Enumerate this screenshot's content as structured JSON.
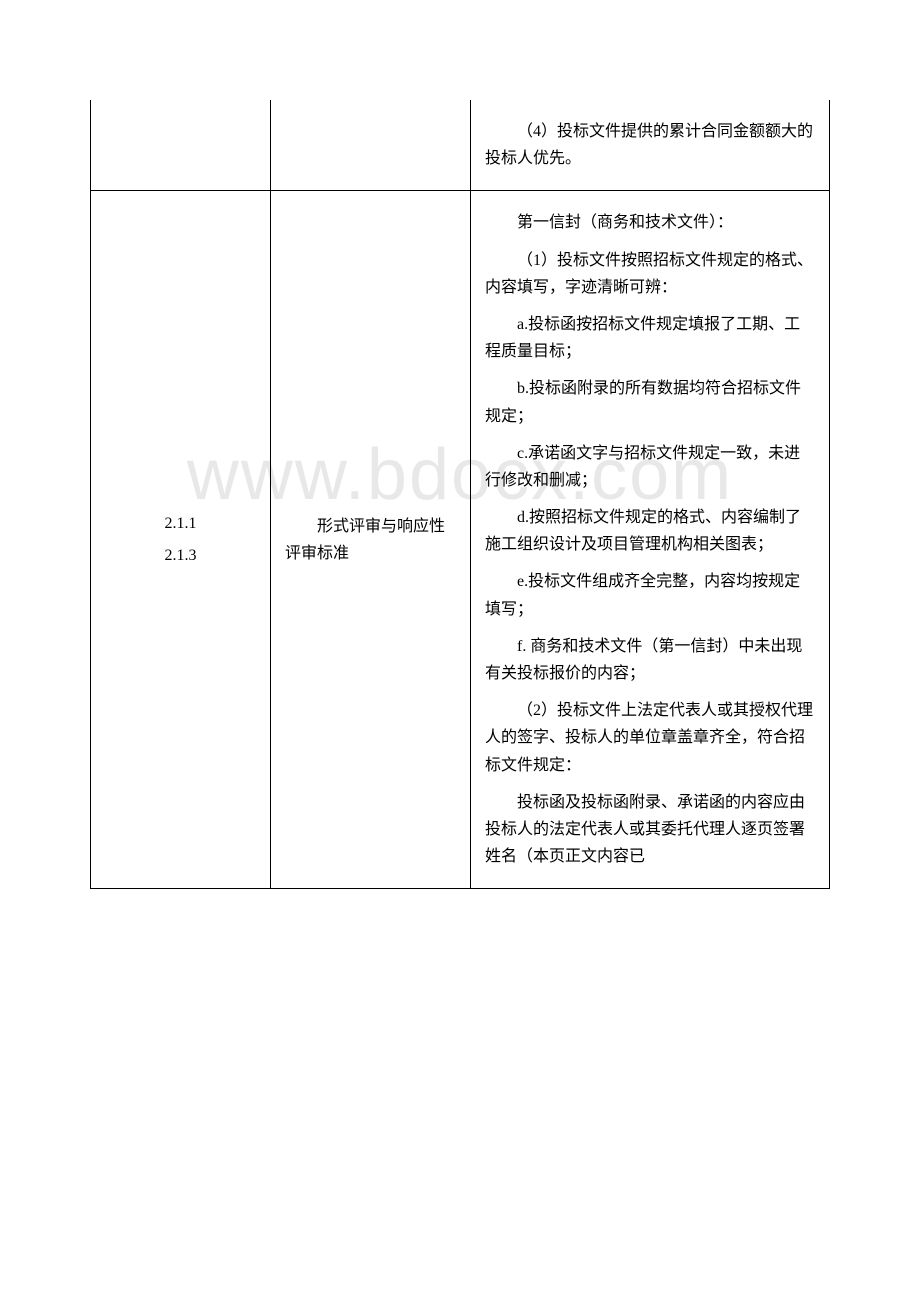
{
  "watermark": "www.bdocx.com",
  "table": {
    "row1": {
      "col3_p1": "（4）投标文件提供的累计合同金额额大的投标人优先。"
    },
    "row2": {
      "col1_line1": "2.1.1",
      "col1_line2": "2.1.3",
      "col2": "形式评审与响应性评审标准",
      "col3": {
        "p1": "第一信封（商务和技术文件）：",
        "p2": "（1）投标文件按照招标文件规定的格式、内容填写，字迹清晰可辨：",
        "p3": "a.投标函按招标文件规定填报了工期、工程质量目标；",
        "p4": "b.投标函附录的所有数据均符合招标文件规定；",
        "p5": "c.承诺函文字与招标文件规定一致，未进行修改和删减；",
        "p6": "d.按照招标文件规定的格式、内容编制了施工组织设计及项目管理机构相关图表；",
        "p7": "e.投标文件组成齐全完整，内容均按规定填写；",
        "p8": "f. 商务和技术文件（第一信封）中未出现有关投标报价的内容；",
        "p9": "（2）投标文件上法定代表人或其授权代理人的签字、投标人的单位章盖章齐全，符合招标文件规定：",
        "p10": "投标函及投标函附录、承诺函的内容应由投标人的法定代表人或其委托代理人逐页签署姓名（本页正文内容已"
      }
    }
  },
  "colors": {
    "text": "#000000",
    "border": "#000000",
    "background": "#ffffff",
    "watermark": "#e8e8e8"
  },
  "typography": {
    "body_font": "SimSun",
    "body_fontsize": 16,
    "watermark_fontsize": 72,
    "line_height": 1.7
  }
}
